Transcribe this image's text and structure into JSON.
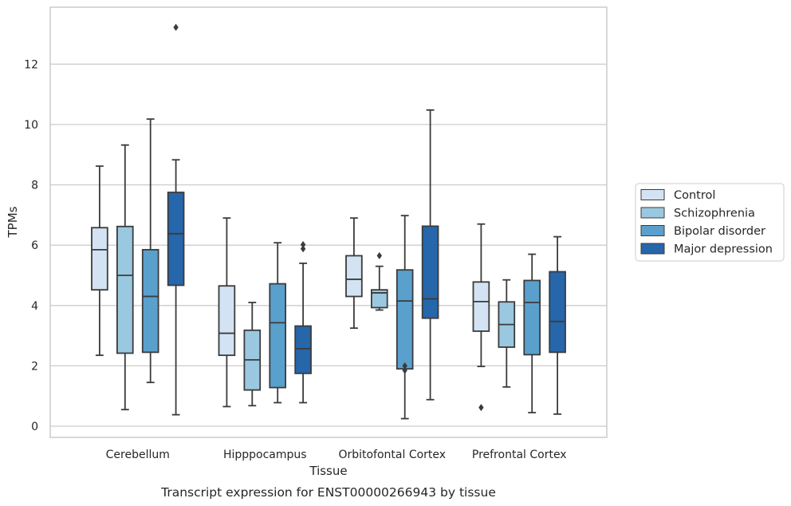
{
  "chart_data": {
    "type": "box",
    "xlabel": "Tissue",
    "ylabel": "TPMs",
    "caption": "Transcript expression for ENST00000266943 by tissue",
    "ylim": [
      -0.35,
      13.8
    ],
    "yticks": [
      0,
      2,
      4,
      6,
      8,
      10,
      12
    ],
    "grid": "horizontal",
    "legend_position": "right",
    "categories": [
      "Cerebellum",
      "Hipppocampus",
      "Orbitofontal Cortex",
      "Prefrontal Cortex"
    ],
    "series": [
      {
        "name": "Control",
        "color": "#d3e3f3",
        "boxes": [
          {
            "whislo": 2.35,
            "q1": 4.52,
            "med": 5.85,
            "q3": 6.58,
            "whishi": 8.62,
            "fliers": []
          },
          {
            "whislo": 0.65,
            "q1": 2.35,
            "med": 3.08,
            "q3": 4.65,
            "whishi": 6.9,
            "fliers": []
          },
          {
            "whislo": 3.25,
            "q1": 4.3,
            "med": 4.87,
            "q3": 5.65,
            "whishi": 6.9,
            "fliers": []
          },
          {
            "whislo": 1.98,
            "q1": 3.15,
            "med": 4.13,
            "q3": 4.78,
            "whishi": 6.7,
            "fliers": [
              0.62
            ]
          }
        ]
      },
      {
        "name": "Schizophrenia",
        "color": "#9ac8e0",
        "boxes": [
          {
            "whislo": 0.55,
            "q1": 2.42,
            "med": 5.0,
            "q3": 6.62,
            "whishi": 9.32,
            "fliers": []
          },
          {
            "whislo": 0.68,
            "q1": 1.2,
            "med": 2.2,
            "q3": 3.18,
            "whishi": 4.1,
            "fliers": []
          },
          {
            "whislo": 3.85,
            "q1": 3.93,
            "med": 4.42,
            "q3": 4.52,
            "whishi": 5.3,
            "fliers": [
              5.65
            ]
          },
          {
            "whislo": 1.3,
            "q1": 2.62,
            "med": 3.37,
            "q3": 4.12,
            "whishi": 4.85,
            "fliers": []
          }
        ]
      },
      {
        "name": "Bipolar disorder",
        "color": "#5aa0cd",
        "boxes": [
          {
            "whislo": 1.45,
            "q1": 2.45,
            "med": 4.3,
            "q3": 5.85,
            "whishi": 10.18,
            "fliers": []
          },
          {
            "whislo": 0.78,
            "q1": 1.28,
            "med": 3.43,
            "q3": 4.72,
            "whishi": 6.08,
            "fliers": []
          },
          {
            "whislo": 0.25,
            "q1": 1.9,
            "med": 4.15,
            "q3": 5.18,
            "whishi": 6.98,
            "fliers": [
              1.85,
              2.0
            ]
          },
          {
            "whislo": 0.45,
            "q1": 2.37,
            "med": 4.1,
            "q3": 4.83,
            "whishi": 5.7,
            "fliers": []
          }
        ]
      },
      {
        "name": "Major depression",
        "color": "#2666ab",
        "boxes": [
          {
            "whislo": 0.38,
            "q1": 4.67,
            "med": 6.38,
            "q3": 7.75,
            "whishi": 8.83,
            "fliers": [
              13.22
            ]
          },
          {
            "whislo": 0.78,
            "q1": 1.75,
            "med": 2.57,
            "q3": 3.32,
            "whishi": 5.4,
            "fliers": [
              5.88,
              6.02
            ]
          },
          {
            "whislo": 0.88,
            "q1": 3.58,
            "med": 4.22,
            "q3": 6.63,
            "whishi": 10.48,
            "fliers": []
          },
          {
            "whislo": 0.4,
            "q1": 2.45,
            "med": 3.47,
            "q3": 5.12,
            "whishi": 6.28,
            "fliers": []
          }
        ]
      }
    ]
  }
}
